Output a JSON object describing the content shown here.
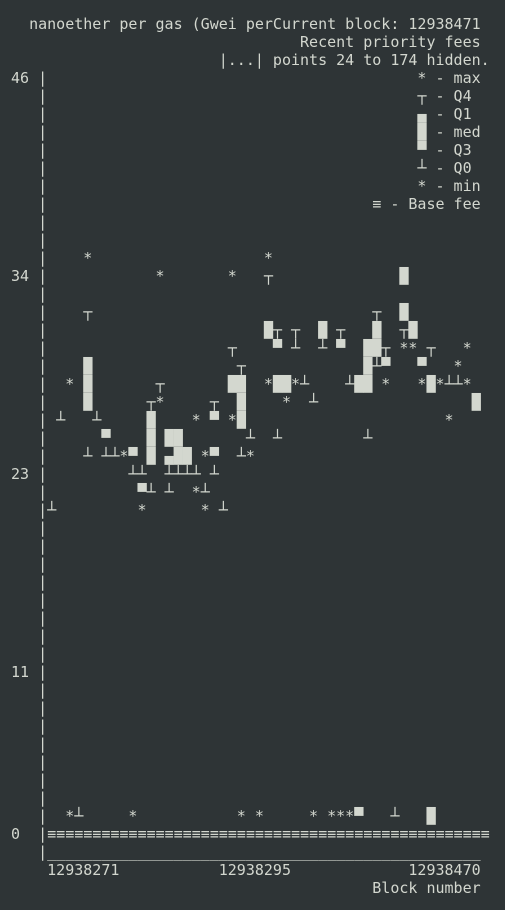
{
  "screen": {
    "lines": [
      "   nanoether per gas (Gwei perCurrent block: 12938471",
      "                                 Recent priority fees",
      "                        |...| points 24 to 174 hidden.",
      " 46 |                                         * - max",
      "    |                                         ┬ - Q4",
      "    |                                         ▄ - Q1",
      "    |                                         █ - med",
      "    |                                         ▀ - Q3",
      "    |                                         ┴ - Q0",
      "    |                                         * - min",
      "    |                                    ≡ - Base fee",
      "    |",
      "    |",
      "    |    *                   *",
      " 34 |            *       *   ┬              █",
      "    |",
      "    |    ┬                               ┬  █",
      "    |                        █┬ ┬  █ ┬   █  ┬█",
      "    |                    ┬    ▀ ┴  ┴ ▀  ██┬ ** ┬   *",
      "    |    █                ┬             █┴▀   ▀   *",
      "    |  * █       ┬       ██  *██*┴    ┴██ *   *█*┴┴*",
      "    |    █      ┬*     ┬  █    *  ┴                 █",
      "    | ┴   ┴     █    * ▀ *█                      *",
      "    |      ▀    █ ██       ┴  ┴         ┴",
      "    |    ┴ ┴┴*▀ █ ▄██ *▀  ┴*",
      " 23 |         ┴┴  ┴┴┴┴ ┴",
      "    |          ▀┴ ┴  *┴",
      "    |┴         *      * ┴",
      "    |",
      "    |",
      "    |",
      "    |",
      "    |",
      "    |",
      "    |",
      "    |",
      " 11 |",
      "    |",
      "    |",
      "    |",
      "    |",
      "    |",
      "    |",
      "    |",
      "    |  *┴     *           * *     * ***▀   ┴   █",
      " 0  |≡≡≡≡≡≡≡≡≡≡≡≡≡≡≡≡≡≡≡≡≡≡≡≡≡≡≡≡≡≡≡≡≡≡≡≡≡≡≡≡≡≡≡≡≡≡≡≡≡",
      "    |________________________________________________",
      "     12938271           12938295             12938470",
      "                                         Block number"
    ]
  }
}
